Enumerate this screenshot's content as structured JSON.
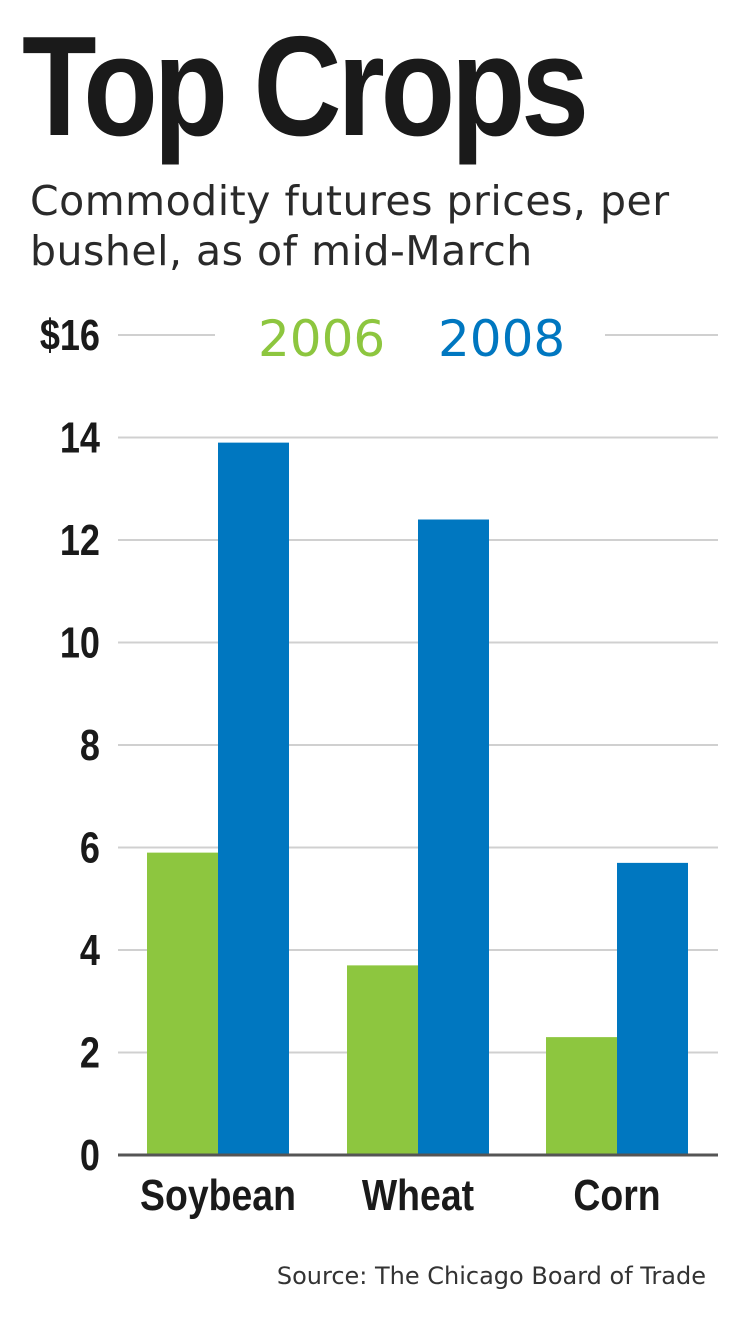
{
  "title": "Top Crops",
  "subtitle": "Commodity futures prices, per bushel, as of mid-March",
  "source": "Source: The Chicago Board of Trade",
  "colors": {
    "series_2006": "#8dc63f",
    "series_2008": "#0077c0",
    "gridline": "#d0d0d0",
    "axis": "#555555",
    "text": "#1a1a1a"
  },
  "chart_data": {
    "type": "bar",
    "categories": [
      "Soybean",
      "Wheat",
      "Corn"
    ],
    "series": [
      {
        "name": "2006",
        "values": [
          5.9,
          3.7,
          2.3
        ]
      },
      {
        "name": "2008",
        "values": [
          13.9,
          12.4,
          5.7
        ]
      }
    ],
    "yticks": [
      0,
      2,
      4,
      6,
      8,
      10,
      12,
      14,
      16
    ],
    "ytick_labels": [
      "0",
      "2",
      "4",
      "6",
      "8",
      "10",
      "12",
      "14",
      "$16"
    ],
    "ylim": [
      0,
      16
    ],
    "grid": true,
    "legend": "top"
  }
}
